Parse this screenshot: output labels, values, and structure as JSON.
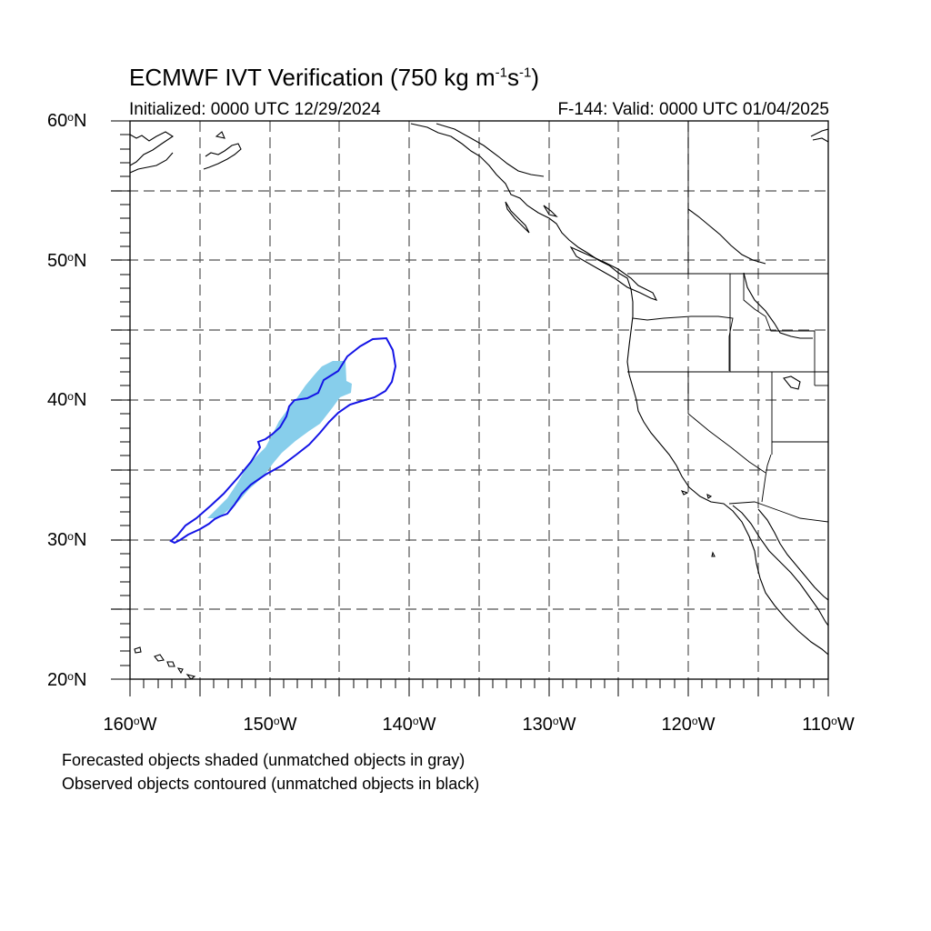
{
  "title": {
    "main": "ECMWF IVT Verification (750 kg m",
    "exp1": "-1",
    "mid": "s",
    "exp2": "-1",
    "end": ")"
  },
  "subtitle": {
    "initialized": "Initialized: 0000 UTC 12/29/2024",
    "valid": "F-144: Valid: 0000 UTC 01/04/2025"
  },
  "lat_labels": [
    "60",
    "50",
    "40",
    "30",
    "20"
  ],
  "lat_suffix": "N",
  "lon_labels": [
    "160",
    "150",
    "140",
    "130",
    "120",
    "110"
  ],
  "lon_suffix": "W",
  "degree_symbol": "o",
  "notes": {
    "forecast": "Forecasted objects shaded (unmatched objects in gray)",
    "observed": "Observed objects contoured (unmatched objects in black)"
  },
  "map_extent": {
    "lon": [
      -160,
      -110
    ],
    "lat": [
      20,
      60
    ]
  },
  "grid_spacing_deg": 5,
  "colors": {
    "forecast_fill": "#87ceeb",
    "observed_contour": "#1414e6",
    "coastline": "#000000",
    "grid": "#555555"
  }
}
